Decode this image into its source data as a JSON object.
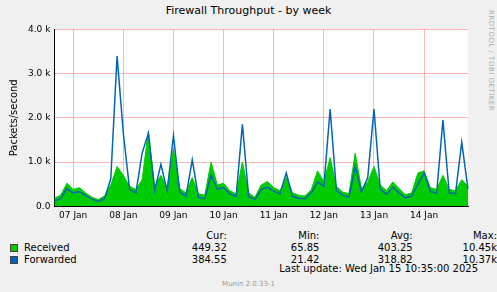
{
  "chart_data": {
    "type": "line",
    "title": "Firewall Throughput - by week",
    "y_label": "Packets/second",
    "categories": [
      null,
      null,
      null,
      "07 Jan",
      null,
      null,
      null,
      null,
      null,
      null,
      null,
      "08 Jan",
      null,
      null,
      null,
      null,
      null,
      null,
      null,
      "09 Jan",
      null,
      null,
      null,
      null,
      null,
      null,
      null,
      "10 Jan",
      null,
      null,
      null,
      null,
      null,
      null,
      null,
      "11 Jan",
      null,
      null,
      null,
      null,
      null,
      null,
      null,
      "12 Jan",
      null,
      null,
      null,
      null,
      null,
      null,
      null,
      "13 Jan",
      null,
      null,
      null,
      null,
      null,
      null,
      null,
      "14 Jan",
      null,
      null,
      null,
      null,
      null,
      null,
      null
    ],
    "series": [
      {
        "name": "Received",
        "color": "#00cc00",
        "type": "area",
        "values": [
          180,
          250,
          520,
          380,
          420,
          300,
          200,
          150,
          230,
          480,
          900,
          700,
          450,
          380,
          600,
          1700,
          450,
          700,
          420,
          1300,
          400,
          300,
          650,
          280,
          250,
          1000,
          480,
          520,
          350,
          280,
          1000,
          300,
          200,
          480,
          560,
          420,
          350,
          650,
          300,
          250,
          230,
          380,
          800,
          550,
          1100,
          450,
          320,
          280,
          1200,
          400,
          550,
          900,
          480,
          350,
          550,
          400,
          260,
          300,
          750,
          800,
          420,
          380,
          700,
          380,
          350,
          600,
          449.32
        ]
      },
      {
        "name": "Forwarded",
        "color": "#0066b3",
        "type": "line",
        "values": [
          120,
          170,
          400,
          300,
          330,
          240,
          160,
          110,
          170,
          620,
          3400,
          1650,
          380,
          300,
          1200,
          1650,
          350,
          950,
          340,
          1600,
          320,
          230,
          1050,
          200,
          170,
          700,
          380,
          420,
          280,
          220,
          1850,
          220,
          150,
          380,
          430,
          340,
          280,
          750,
          220,
          180,
          170,
          300,
          550,
          450,
          2200,
          350,
          250,
          200,
          900,
          320,
          650,
          2200,
          380,
          270,
          430,
          300,
          190,
          230,
          500,
          750,
          330,
          300,
          1950,
          300,
          280,
          1450,
          384.55
        ]
      }
    ],
    "ylim": [
      0,
      4000
    ],
    "yticks": [
      {
        "value": 0,
        "label": "0.0"
      },
      {
        "value": 1000,
        "label": "1.0 k"
      },
      {
        "value": 2000,
        "label": "2.0 k"
      },
      {
        "value": 3000,
        "label": "3.0 k"
      },
      {
        "value": 4000,
        "label": "4.0 k"
      }
    ],
    "grid": true,
    "legend_stats": {
      "columns": [
        "Cur:",
        "Min:",
        "Avg:",
        "Max:"
      ],
      "rows": [
        [
          "449.32",
          "65.85",
          "403.25",
          "10.45k"
        ],
        [
          "384.55",
          "21.42",
          "318.82",
          "10.37k"
        ]
      ]
    },
    "last_update": "Last update: Wed Jan 15 10:35:00 2025",
    "footer": "Munin 2.0.33-1",
    "watermark": "RRDTOOL / TOBI OETIKER"
  }
}
